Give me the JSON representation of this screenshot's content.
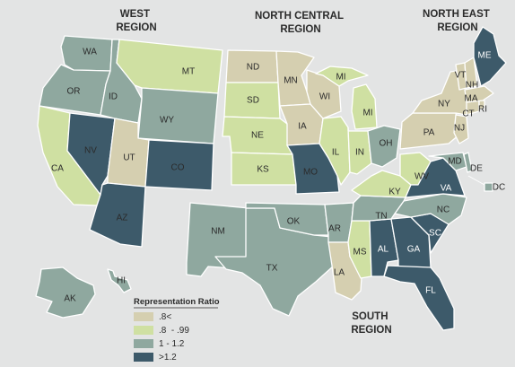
{
  "colors": {
    "background": "#e3e4e4",
    "c1": "#d5cfb0",
    "c2": "#cfe0a2",
    "c3": "#8fa89f",
    "c4": "#3d5a6a"
  },
  "regions": {
    "west": [
      "WEST",
      "REGION"
    ],
    "north_central": [
      "NORTH CENTRAL",
      "REGION"
    ],
    "north_east": [
      "NORTH EAST",
      "REGION"
    ],
    "south": [
      "SOUTH",
      "REGION"
    ]
  },
  "legend": {
    "title": "Representation Ratio",
    "items": [
      {
        "label": ".8<",
        "class": "c1"
      },
      {
        "label": ".8  - .99",
        "class": "c2"
      },
      {
        "label": "1 - 1.2",
        "class": "c3"
      },
      {
        "label": ">1.2",
        "class": "c4"
      }
    ]
  },
  "states": [
    {
      "abbr": "WA",
      "class": "c3"
    },
    {
      "abbr": "OR",
      "class": "c3"
    },
    {
      "abbr": "CA",
      "class": "c2"
    },
    {
      "abbr": "NV",
      "class": "c4"
    },
    {
      "abbr": "ID",
      "class": "c3"
    },
    {
      "abbr": "MT",
      "class": "c2"
    },
    {
      "abbr": "WY",
      "class": "c3"
    },
    {
      "abbr": "UT",
      "class": "c1"
    },
    {
      "abbr": "CO",
      "class": "c4"
    },
    {
      "abbr": "AZ",
      "class": "c4"
    },
    {
      "abbr": "NM",
      "class": "c3"
    },
    {
      "abbr": "AK",
      "class": "c3"
    },
    {
      "abbr": "HI",
      "class": "c3"
    },
    {
      "abbr": "ND",
      "class": "c1"
    },
    {
      "abbr": "SD",
      "class": "c2"
    },
    {
      "abbr": "NE",
      "class": "c2"
    },
    {
      "abbr": "KS",
      "class": "c2"
    },
    {
      "abbr": "MN",
      "class": "c1"
    },
    {
      "abbr": "IA",
      "class": "c1"
    },
    {
      "abbr": "MO",
      "class": "c4"
    },
    {
      "abbr": "WI",
      "class": "c1"
    },
    {
      "abbr": "IL",
      "class": "c2"
    },
    {
      "abbr": "MI",
      "class": "c2"
    },
    {
      "abbr": "MI",
      "class": "c2"
    },
    {
      "abbr": "IN",
      "class": "c2"
    },
    {
      "abbr": "OH",
      "class": "c3"
    },
    {
      "abbr": "TX",
      "class": "c3"
    },
    {
      "abbr": "OK",
      "class": "c3"
    },
    {
      "abbr": "AR",
      "class": "c3"
    },
    {
      "abbr": "LA",
      "class": "c1"
    },
    {
      "abbr": "MS",
      "class": "c2"
    },
    {
      "abbr": "AL",
      "class": "c4"
    },
    {
      "abbr": "GA",
      "class": "c4"
    },
    {
      "abbr": "FL",
      "class": "c4"
    },
    {
      "abbr": "SC",
      "class": "c4"
    },
    {
      "abbr": "NC",
      "class": "c3"
    },
    {
      "abbr": "TN",
      "class": "c3"
    },
    {
      "abbr": "KY",
      "class": "c2"
    },
    {
      "abbr": "WV",
      "class": "c2"
    },
    {
      "abbr": "VA",
      "class": "c4"
    },
    {
      "abbr": "MD",
      "class": "c3"
    },
    {
      "abbr": "DE",
      "class": "c3"
    },
    {
      "abbr": "DC",
      "class": "c3"
    },
    {
      "abbr": "PA",
      "class": "c1"
    },
    {
      "abbr": "NY",
      "class": "c1"
    },
    {
      "abbr": "NJ",
      "class": "c1"
    },
    {
      "abbr": "CT",
      "class": "c1"
    },
    {
      "abbr": "RI",
      "class": "c1"
    },
    {
      "abbr": "MA",
      "class": "c1"
    },
    {
      "abbr": "VT",
      "class": "c1"
    },
    {
      "abbr": "NH",
      "class": "c1"
    },
    {
      "abbr": "ME",
      "class": "c4"
    }
  ]
}
